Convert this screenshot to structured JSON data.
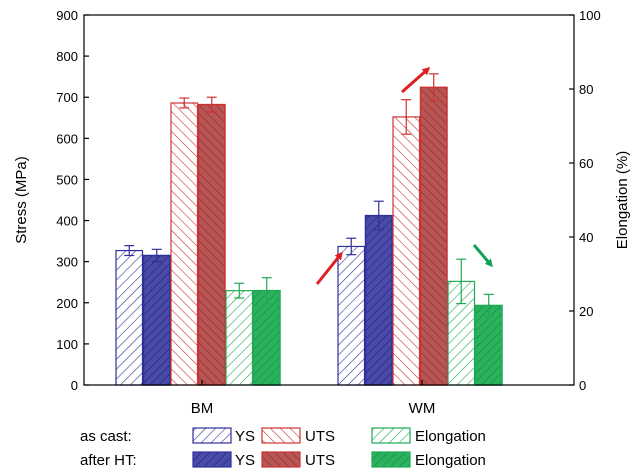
{
  "chart_data": {
    "type": "bar",
    "categories": [
      "BM",
      "WM"
    ],
    "ylabel_left": "Stress (MPa)",
    "ylabel_right": "Elongation (%)",
    "ylim_left": [
      0,
      900
    ],
    "ylim_right": [
      0,
      100
    ],
    "yticks_left": [
      "0",
      "100",
      "200",
      "300",
      "400",
      "500",
      "600",
      "700",
      "800",
      "900"
    ],
    "yticks_right": [
      "0",
      "20",
      "40",
      "60",
      "80",
      "100"
    ],
    "legend_rows": [
      "as cast:",
      "after HT:"
    ],
    "series": [
      {
        "name": "YS",
        "group": "as cast",
        "axis": "left",
        "values": [
          327,
          337
        ],
        "errors": [
          12,
          20
        ],
        "color": "#2f2f9a",
        "fill": "hatch"
      },
      {
        "name": "YS",
        "group": "after HT",
        "axis": "left",
        "values": [
          315,
          412
        ],
        "errors": [
          15,
          35
        ],
        "color": "#2f2f9a",
        "fill": "solid-hatch"
      },
      {
        "name": "UTS",
        "group": "as cast",
        "axis": "left",
        "values": [
          686,
          652
        ],
        "errors": [
          12,
          42
        ],
        "color": "#cc3333",
        "fill": "hatch"
      },
      {
        "name": "UTS",
        "group": "after HT",
        "axis": "left",
        "values": [
          682,
          724
        ],
        "errors": [
          18,
          33
        ],
        "color": "#cc3333",
        "fill": "solid-hatch"
      },
      {
        "name": "Elongation",
        "group": "as cast",
        "axis": "right",
        "values": [
          25.5,
          28.0
        ],
        "errors": [
          2.0,
          6.0
        ],
        "color": "#1faa55",
        "fill": "hatch"
      },
      {
        "name": "Elongation",
        "group": "after HT",
        "axis": "right",
        "values": [
          25.5,
          21.5
        ],
        "errors": [
          3.5,
          3.0
        ],
        "color": "#1faa55",
        "fill": "solid-hatch"
      }
    ],
    "annotations": [
      "arrow-up-ys",
      "arrow-up-uts",
      "arrow-down-elongation"
    ],
    "grid": false
  }
}
